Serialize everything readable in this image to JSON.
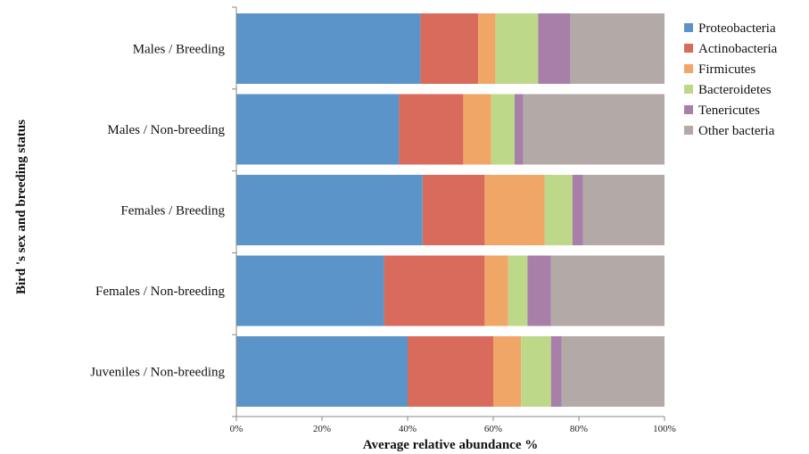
{
  "chart_data": {
    "type": "bar",
    "orientation": "horizontal",
    "stacked": true,
    "categories": [
      "Males / Breeding",
      "Males / Non-breeding",
      "Females / Breeding",
      "Females / Non-breeding",
      "Juveniles / Non-breeding"
    ],
    "series": [
      {
        "name": "Proteobacteria",
        "color": "#5b94c8",
        "values": [
          43,
          38,
          43.5,
          34.5,
          40
        ]
      },
      {
        "name": "Actinobacteria",
        "color": "#d86b5c",
        "values": [
          13.5,
          15,
          14.5,
          23.5,
          20
        ]
      },
      {
        "name": "Firmicutes",
        "color": "#f0a666",
        "values": [
          4,
          6.5,
          14,
          5.5,
          6.5
        ]
      },
      {
        "name": "Bacteroidetes",
        "color": "#bdd889",
        "values": [
          10,
          5.5,
          6.5,
          4.5,
          7
        ]
      },
      {
        "name": "Tenericutes",
        "color": "#a77fa8",
        "values": [
          7.5,
          2,
          2.5,
          5.5,
          2.5
        ]
      },
      {
        "name": "Other bacteria",
        "color": "#b3aaa8",
        "values": [
          22,
          33,
          19,
          26.5,
          24
        ]
      }
    ],
    "title": "",
    "xlabel": "Average relative abundance %",
    "ylabel": "Bird 's sex and breeding status",
    "xlim": [
      0,
      100
    ],
    "xticks": [
      0,
      20,
      40,
      60,
      80,
      100
    ],
    "xtick_labels": [
      "0%",
      "20%",
      "40%",
      "60%",
      "80%",
      "100%"
    ],
    "grid": false,
    "legend_position": "right"
  }
}
